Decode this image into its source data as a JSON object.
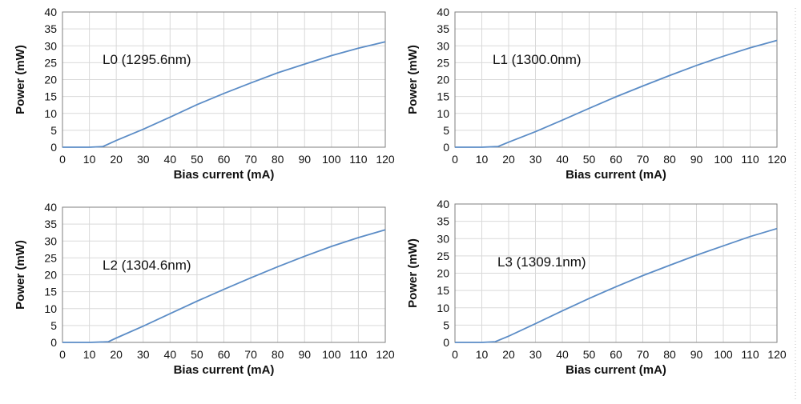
{
  "chart_data": [
    {
      "type": "line",
      "annotation": "L0 (1295.6nm)",
      "xlabel": "Bias current (mA)",
      "ylabel": "Power (mW)",
      "xlim": [
        0,
        120
      ],
      "ylim": [
        0,
        40
      ],
      "xticks": [
        "0",
        "10",
        "20",
        "30",
        "40",
        "50",
        "60",
        "70",
        "80",
        "90",
        "100",
        "110",
        "120"
      ],
      "yticks": [
        "0",
        "5",
        "10",
        "15",
        "20",
        "25",
        "30",
        "35",
        "40"
      ],
      "grid": true,
      "line_color": "#5b8cc6",
      "series": [
        {
          "x": [
            0,
            10,
            15,
            20,
            30,
            40,
            50,
            60,
            70,
            80,
            90,
            100,
            110,
            120
          ],
          "y": [
            0,
            0,
            0.2,
            2,
            5.3,
            8.9,
            12.6,
            15.9,
            19.0,
            22.0,
            24.6,
            27.1,
            29.3,
            31.2
          ]
        }
      ]
    },
    {
      "type": "line",
      "annotation": "L1 (1300.0nm)",
      "xlabel": "Bias current (mA)",
      "ylabel": "Power (mW)",
      "xlim": [
        0,
        120
      ],
      "ylim": [
        0,
        40
      ],
      "xticks": [
        "0",
        "10",
        "20",
        "30",
        "40",
        "50",
        "60",
        "70",
        "80",
        "90",
        "100",
        "110",
        "120"
      ],
      "yticks": [
        "0",
        "5",
        "10",
        "15",
        "20",
        "25",
        "30",
        "35",
        "40"
      ],
      "grid": true,
      "line_color": "#5b8cc6",
      "series": [
        {
          "x": [
            0,
            10,
            16,
            20,
            30,
            40,
            50,
            60,
            70,
            80,
            90,
            100,
            110,
            120
          ],
          "y": [
            0,
            0,
            0.2,
            1.5,
            4.6,
            8.0,
            11.5,
            14.9,
            18.1,
            21.2,
            24.2,
            26.9,
            29.4,
            31.6
          ]
        }
      ]
    },
    {
      "type": "line",
      "annotation": "L2 (1304.6nm)",
      "xlabel": "Bias current (mA)",
      "ylabel": "Power (mW)",
      "xlim": [
        0,
        120
      ],
      "ylim": [
        0,
        40
      ],
      "xticks": [
        "0",
        "10",
        "20",
        "30",
        "40",
        "50",
        "60",
        "70",
        "80",
        "90",
        "100",
        "110",
        "120"
      ],
      "yticks": [
        "0",
        "5",
        "10",
        "15",
        "20",
        "25",
        "30",
        "35",
        "40"
      ],
      "grid": true,
      "line_color": "#5b8cc6",
      "series": [
        {
          "x": [
            0,
            10,
            17,
            20,
            30,
            40,
            50,
            60,
            70,
            80,
            90,
            100,
            110,
            120
          ],
          "y": [
            0,
            0,
            0.2,
            1.3,
            4.8,
            8.5,
            12.2,
            15.7,
            19.1,
            22.4,
            25.5,
            28.4,
            31.0,
            33.3
          ]
        }
      ]
    },
    {
      "type": "line",
      "annotation": "L3 (1309.1nm)",
      "xlabel": "Bias current (mA)",
      "ylabel": "Power (mW)",
      "xlim": [
        0,
        120
      ],
      "ylim": [
        0,
        40
      ],
      "xticks": [
        "0",
        "10",
        "20",
        "30",
        "40",
        "50",
        "60",
        "70",
        "80",
        "90",
        "100",
        "110",
        "120"
      ],
      "yticks": [
        "0",
        "5",
        "10",
        "15",
        "20",
        "25",
        "30",
        "35",
        "40"
      ],
      "grid": true,
      "line_color": "#5b8cc6",
      "series": [
        {
          "x": [
            0,
            10,
            15,
            20,
            30,
            40,
            50,
            60,
            70,
            80,
            90,
            100,
            110,
            120
          ],
          "y": [
            0,
            0,
            0.2,
            1.8,
            5.4,
            9.1,
            12.7,
            16.1,
            19.3,
            22.3,
            25.2,
            27.9,
            30.6,
            32.9
          ]
        }
      ]
    }
  ]
}
